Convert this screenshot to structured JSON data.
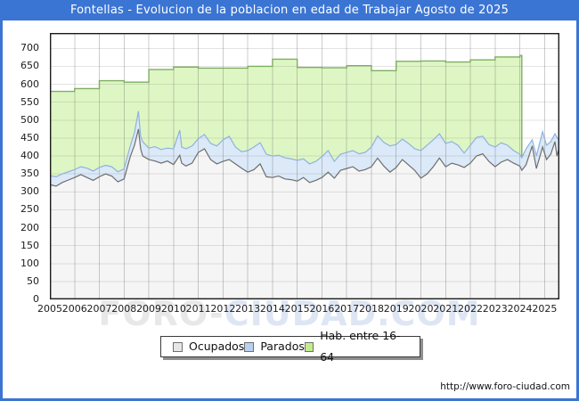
{
  "title": "Fontellas - Evolucion de la poblacion en edad de Trabajar Agosto de 2025",
  "watermark": {
    "part1": "FORO-",
    "part2": "CIUDAD.COM"
  },
  "footer_url": "http://www.foro-ciudad.com",
  "legend": {
    "items": [
      {
        "label": "Ocupados",
        "swatch": "#e6e6e6"
      },
      {
        "label": "Parados",
        "swatch": "#b9d1ee"
      },
      {
        "label": "Hab. entre 16-64",
        "swatch": "#c3eb8e"
      }
    ]
  },
  "chart_data": {
    "type": "area",
    "title": "Fontellas - Evolucion de la poblacion en edad de Trabajar Agosto de 2025",
    "stacked": true,
    "note": "Valores aproximados leidos del grafico; Ocupados y Parados son series mensuales (muestreadas ~trimestralmente), Parados apilado sobre Ocupados. Hab. entre 16-64 es un escalon anual que termina a inicios de 2024.",
    "x_range": [
      2005,
      2025.67
    ],
    "y_range": [
      0,
      743
    ],
    "grid": true,
    "legend_position": "bottom-center",
    "y_ticks": [
      0,
      50,
      100,
      150,
      200,
      250,
      300,
      350,
      400,
      450,
      500,
      550,
      600,
      650,
      700
    ],
    "x_ticks": [
      2005,
      2006,
      2007,
      2008,
      2009,
      2010,
      2011,
      2012,
      2013,
      2014,
      2015,
      2016,
      2017,
      2018,
      2019,
      2020,
      2021,
      2022,
      2023,
      2024,
      2025
    ],
    "x": [
      2005.0,
      2005.25,
      2005.5,
      2005.75,
      2006.0,
      2006.25,
      2006.5,
      2006.75,
      2007.0,
      2007.25,
      2007.5,
      2007.75,
      2008.0,
      2008.25,
      2008.42,
      2008.58,
      2008.67,
      2008.75,
      2009.0,
      2009.25,
      2009.5,
      2009.75,
      2010.0,
      2010.25,
      2010.33,
      2010.5,
      2010.75,
      2011.0,
      2011.25,
      2011.5,
      2011.75,
      2012.0,
      2012.25,
      2012.5,
      2012.75,
      2013.0,
      2013.25,
      2013.5,
      2013.75,
      2014.0,
      2014.25,
      2014.5,
      2014.75,
      2015.0,
      2015.25,
      2015.5,
      2015.75,
      2016.0,
      2016.25,
      2016.5,
      2016.75,
      2017.0,
      2017.25,
      2017.5,
      2017.75,
      2018.0,
      2018.25,
      2018.5,
      2018.75,
      2019.0,
      2019.25,
      2019.5,
      2019.75,
      2020.0,
      2020.25,
      2020.5,
      2020.75,
      2021.0,
      2021.25,
      2021.5,
      2021.75,
      2022.0,
      2022.25,
      2022.5,
      2022.75,
      2023.0,
      2023.25,
      2023.5,
      2023.75,
      2024.0,
      2024.08,
      2024.25,
      2024.5,
      2024.67,
      2024.92,
      2025.08,
      2025.25,
      2025.42,
      2025.5,
      2025.58
    ],
    "series": [
      {
        "name": "Ocupados",
        "fill": "#f5f5f5",
        "line": "#6e6e6e",
        "values": [
          320,
          316,
          326,
          333,
          340,
          348,
          340,
          332,
          342,
          350,
          344,
          328,
          336,
          398,
          430,
          475,
          420,
          400,
          390,
          386,
          380,
          386,
          376,
          402,
          380,
          372,
          380,
          410,
          420,
          390,
          378,
          385,
          390,
          378,
          366,
          355,
          362,
          378,
          342,
          340,
          344,
          336,
          334,
          330,
          340,
          326,
          332,
          340,
          355,
          338,
          360,
          365,
          370,
          358,
          362,
          370,
          394,
          372,
          355,
          368,
          390,
          375,
          360,
          338,
          350,
          370,
          394,
          370,
          380,
          375,
          368,
          380,
          400,
          406,
          385,
          370,
          383,
          390,
          380,
          372,
          360,
          375,
          428,
          365,
          425,
          390,
          405,
          440,
          400,
          420
        ]
      },
      {
        "name": "Parados",
        "fill": "#dbe9f8",
        "line": "#8fb2e0",
        "values": [
          25,
          26,
          24,
          23,
          22,
          22,
          26,
          26,
          26,
          24,
          26,
          28,
          28,
          30,
          35,
          50,
          35,
          40,
          32,
          40,
          38,
          36,
          44,
          70,
          45,
          48,
          48,
          38,
          40,
          45,
          50,
          60,
          65,
          47,
          46,
          60,
          63,
          59,
          63,
          60,
          58,
          59,
          58,
          58,
          52,
          52,
          53,
          58,
          60,
          47,
          45,
          45,
          45,
          48,
          48,
          55,
          62,
          66,
          73,
          64,
          57,
          60,
          60,
          77,
          80,
          75,
          68,
          65,
          60,
          55,
          40,
          50,
          52,
          49,
          47,
          55,
          54,
          40,
          35,
          33,
          35,
          45,
          17,
          35,
          43,
          40,
          35,
          22,
          52,
          25
        ]
      }
    ],
    "hab_16_64": {
      "name": "Hab. entre 16-64",
      "fill": "#def6c3",
      "line": "#7fae63",
      "years": [
        2005,
        2006,
        2007,
        2008,
        2009,
        2010,
        2011,
        2012,
        2013,
        2014,
        2015,
        2016,
        2017,
        2018,
        2019,
        2020,
        2021,
        2022,
        2023,
        2024
      ],
      "values": [
        580,
        588,
        610,
        606,
        641,
        648,
        645,
        645,
        650,
        670,
        647,
        646,
        652,
        638,
        664,
        665,
        662,
        668,
        676,
        680
      ],
      "ends_at": 2024.08
    }
  }
}
